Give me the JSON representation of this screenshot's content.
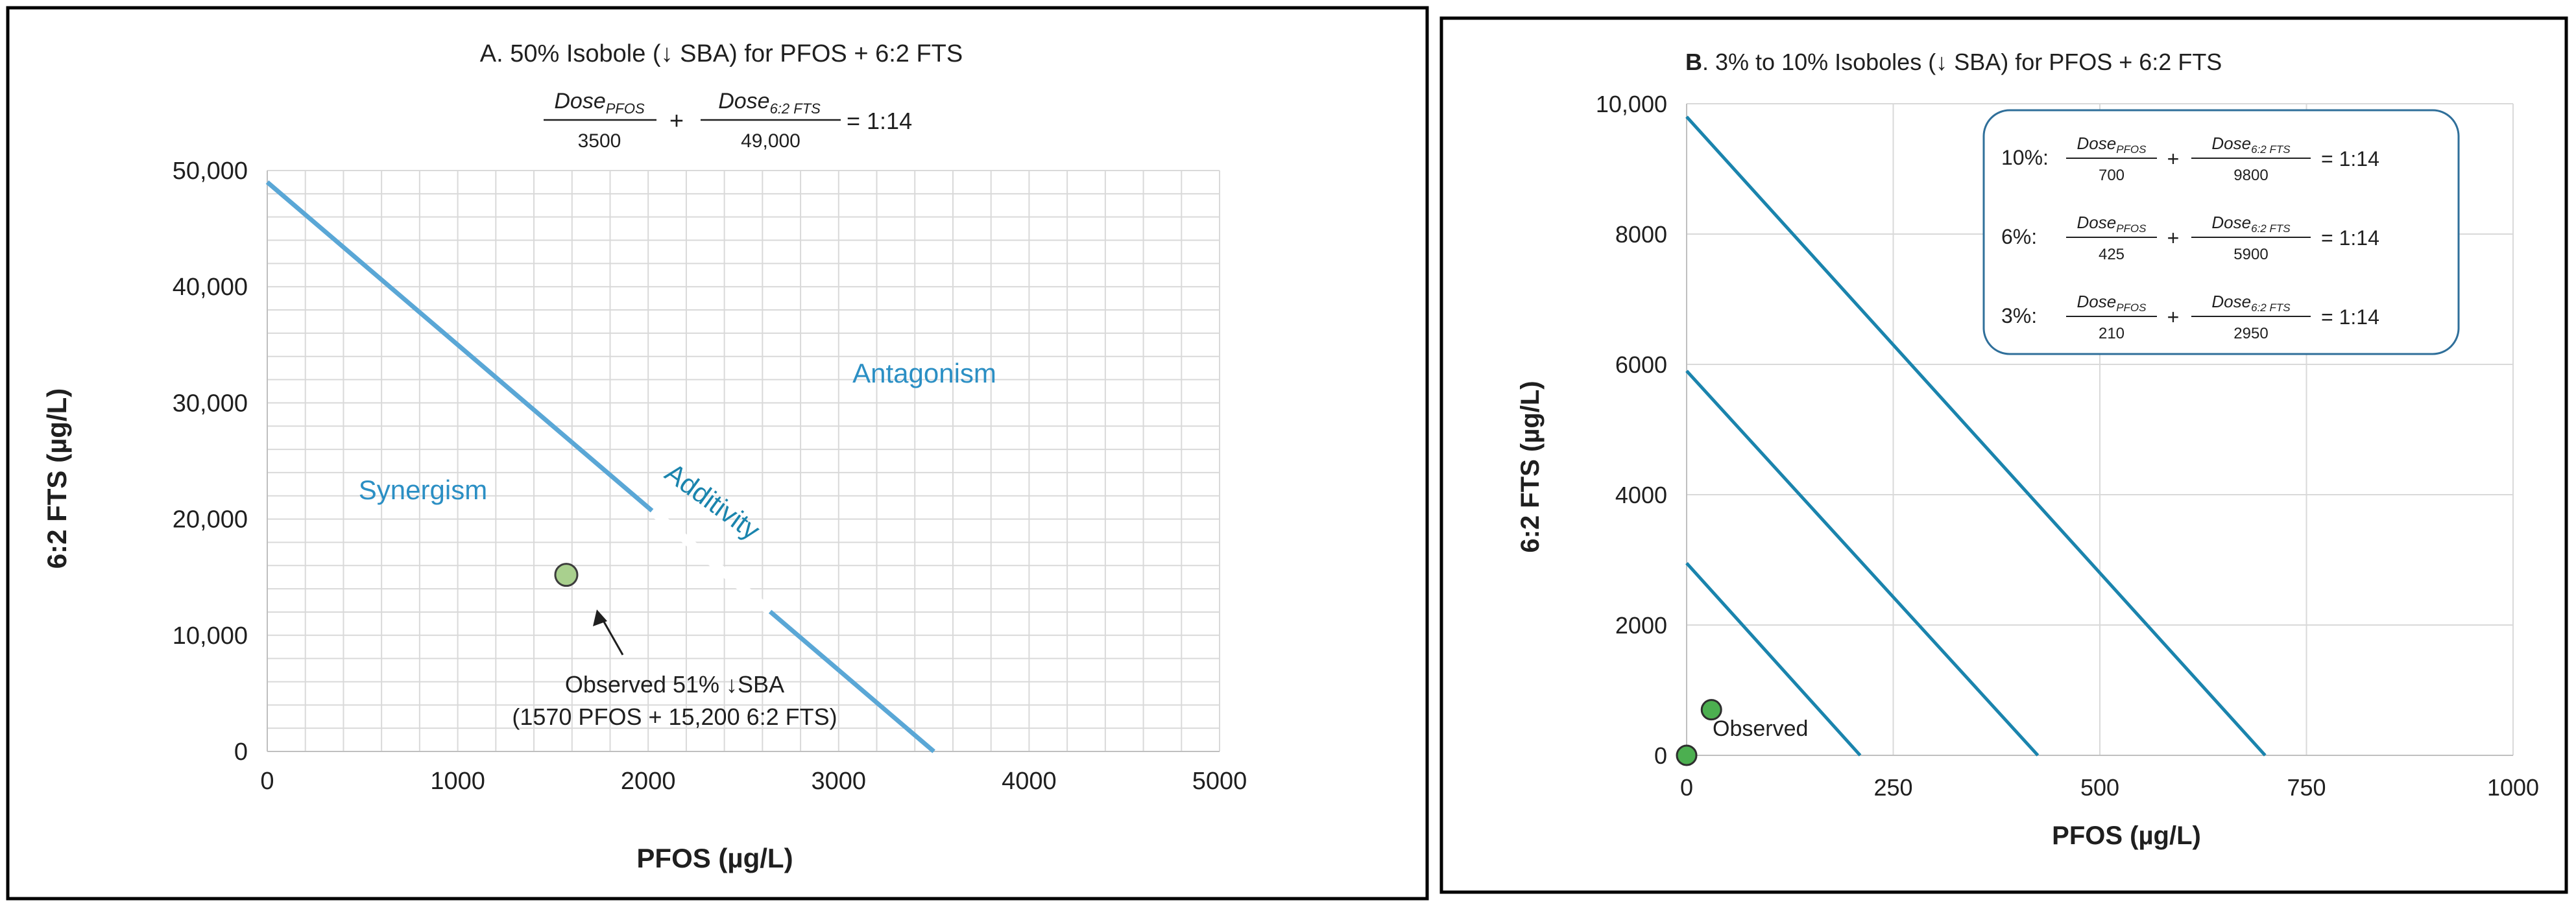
{
  "colors": {
    "line": "#5aa7d6",
    "line_b": "#1a84ad",
    "label": "#2b8fc4",
    "grid": "#d9d9d9",
    "point_a": "#a9d08e",
    "point_b": "#4caf50",
    "text": "#1f1f1f"
  },
  "chart_data": [
    {
      "id": "A",
      "type": "line",
      "title": "A.  50% Isobole (↓ SBA) for PFOS + 6:2 FTS",
      "equation": {
        "term1": "Dose",
        "term1_sub": "PFOS",
        "term1_den": "3500",
        "plus": "+",
        "term2": "Dose",
        "term2_sub": "6:2 FTS",
        "term2_den": "49,000",
        "rhs": "=  1:14"
      },
      "xlabel": "PFOS (µg/L)",
      "ylabel": "6:2 FTS (µg/L)",
      "xlim": [
        0,
        5000
      ],
      "ylim": [
        0,
        50000
      ],
      "xticks": [
        0,
        1000,
        2000,
        3000,
        4000,
        5000
      ],
      "xtick_labels": [
        "0",
        "1000",
        "2000",
        "3000",
        "4000",
        "5000"
      ],
      "yticks": [
        0,
        10000,
        20000,
        30000,
        40000,
        50000
      ],
      "ytick_labels": [
        "0",
        "10,000",
        "20,000",
        "30,000",
        "40,000",
        "50,000"
      ],
      "minor_grid_x_step": 200,
      "minor_grid_y_step": 2000,
      "series": [
        {
          "name": "50% Isobole",
          "x": [
            0,
            3500
          ],
          "y": [
            49000,
            0
          ]
        }
      ],
      "points": [
        {
          "name": "Observed 51% ↓SBA",
          "x": 1570,
          "y": 15200
        }
      ],
      "annotations": {
        "synergism": "Synergism",
        "antagonism": "Antagonism",
        "additivity": "Additivity",
        "observed_line1": "Observed 51% ↓SBA",
        "observed_line2": "(1570  PFOS + 15,200 6:2 FTS)"
      }
    },
    {
      "id": "B",
      "type": "line",
      "title_bold": "B",
      "title": ".  3% to 10% Isoboles (↓ SBA) for PFOS + 6:2 FTS",
      "xlabel": "PFOS (µg/L)",
      "ylabel": "6:2 FTS (µg/L)",
      "xlim": [
        0,
        1000
      ],
      "ylim": [
        0,
        10000
      ],
      "xticks": [
        0,
        250,
        500,
        750,
        1000
      ],
      "xtick_labels": [
        "0",
        "250",
        "500",
        "750",
        "1000"
      ],
      "yticks": [
        0,
        2000,
        4000,
        6000,
        8000,
        10000
      ],
      "ytick_labels": [
        "0",
        "2000",
        "4000",
        "6000",
        "8000",
        "10,000"
      ],
      "series": [
        {
          "name": "10% Isobole",
          "x": [
            0,
            700
          ],
          "y": [
            9800,
            0
          ]
        },
        {
          "name": "6% Isobole",
          "x": [
            0,
            425
          ],
          "y": [
            5900,
            0
          ]
        },
        {
          "name": "3% Isobole",
          "x": [
            0,
            210
          ],
          "y": [
            2950,
            0
          ]
        }
      ],
      "points": [
        {
          "name": "Observed",
          "x": 30,
          "y": 700
        },
        {
          "name": "Origin",
          "x": 0,
          "y": 0
        }
      ],
      "annotations": {
        "observed": "Observed"
      },
      "legend_equations": [
        {
          "pct": "10%:",
          "term": "Dose",
          "sub1": "PFOS",
          "den1": "700",
          "plus": "+",
          "sub2": "6:2 FTS",
          "den2": "9800",
          "rhs": "=  1:14"
        },
        {
          "pct": "6%:",
          "term": "Dose",
          "sub1": "PFOS",
          "den1": "425",
          "plus": "+",
          "sub2": "6:2 FTS",
          "den2": "5900",
          "rhs": "=  1:14"
        },
        {
          "pct": "3%:",
          "term": "Dose",
          "sub1": "PFOS",
          "den1": "210",
          "plus": "+",
          "sub2": "6:2 FTS",
          "den2": "2950",
          "rhs": "=  1:14"
        }
      ]
    }
  ]
}
